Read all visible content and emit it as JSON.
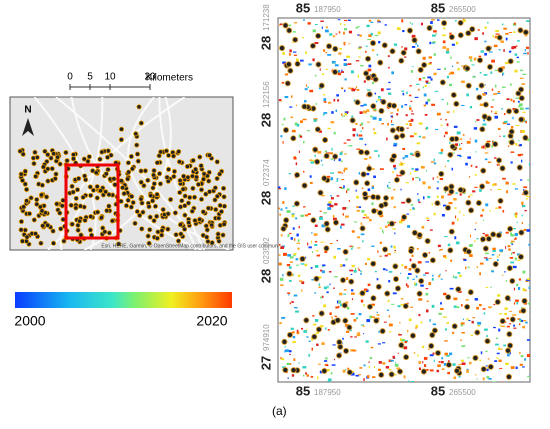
{
  "scale_bar": {
    "ticks": [
      "0",
      "5",
      "10",
      "20"
    ],
    "unit": "Kilometers"
  },
  "north_arrow": "N",
  "attribution": "Esri, HERE, Garmin, © OpenStreetMap contributors, and the GIS user community",
  "legend": {
    "min": "2000",
    "max": "2020"
  },
  "top_labels": [
    {
      "degree": "85",
      "minor": "187950"
    },
    {
      "degree": "85",
      "minor": "265500"
    }
  ],
  "bottom_labels": [
    {
      "degree": "85",
      "minor": "187950"
    },
    {
      "degree": "85",
      "minor": "265500"
    }
  ],
  "left_labels": [
    {
      "degree": "28",
      "minor": "171238"
    },
    {
      "degree": "28",
      "minor": "122156"
    },
    {
      "degree": "28",
      "minor": "072374"
    },
    {
      "degree": "28",
      "minor": "023592"
    },
    {
      "degree": "27",
      "minor": "974910"
    }
  ],
  "caption": "(a)"
}
